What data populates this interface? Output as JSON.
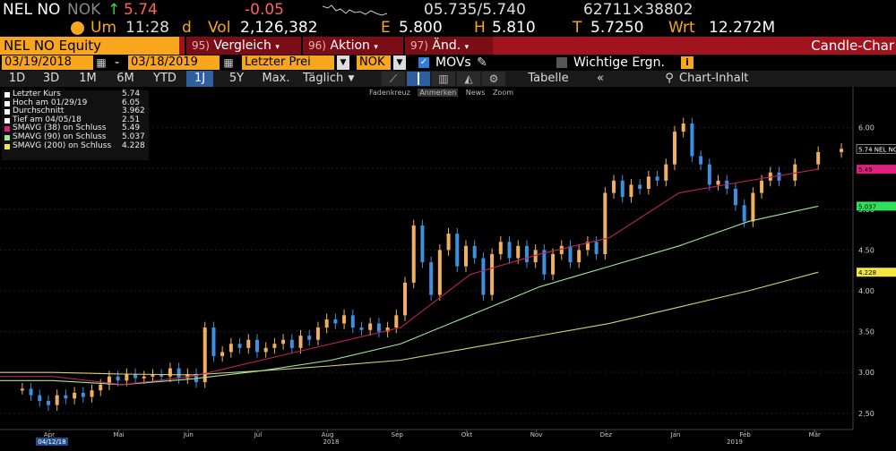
{
  "ticker": {
    "symbol": "NEL NO",
    "currency": "NOK",
    "arrow": "↑",
    "last": "5.74",
    "change": "-0.05",
    "bid_ask": "05.735/5.740",
    "size": "62711×38802",
    "um_label": "Um",
    "time": "11:28",
    "d": "d",
    "vol_label": "Vol",
    "volume": "2,126,382",
    "e_label": "E",
    "e_value": "5.800",
    "h_label": "H",
    "h_value": "5.810",
    "t_label": "T",
    "t_value": "5.7250",
    "wrt_label": "Wrt",
    "wrt_value": "12.272M"
  },
  "bar": {
    "security": "NEL NO Equity",
    "menus": [
      {
        "num": "95)",
        "label": "Vergleich"
      },
      {
        "num": "96)",
        "label": "Aktion"
      },
      {
        "num": "97)",
        "label": "Änd."
      }
    ],
    "right_label": "Candle-Char"
  },
  "range": {
    "start": "03/19/2018",
    "sep": "-",
    "end": "03/18/2019",
    "price_type": "Letzter Prei",
    "currency": "NOK",
    "movs_label": "MOVs",
    "events_label": "Wichtige Ergn."
  },
  "toolbar": {
    "periods": [
      "1D",
      "3D",
      "1M",
      "6M",
      "YTD",
      "1J",
      "5Y",
      "Max."
    ],
    "selected_period": "1J",
    "frequency": "Täglich",
    "table_label": "Tabelle",
    "content_label": "Chart-Inhalt"
  },
  "subtools": [
    "Fadenkreuz",
    "Anmerken",
    "News",
    "Zoom"
  ],
  "legend": [
    {
      "label": "Letzter Kurs",
      "value": "5.74",
      "color": "#ffffff"
    },
    {
      "label": "Hoch am 01/29/19",
      "value": "6.05",
      "color": "#ffffff"
    },
    {
      "label": "Durchschnitt",
      "value": "3.962",
      "color": "#ffffff"
    },
    {
      "label": "Tief am 04/05/18",
      "value": "2.51",
      "color": "#ffffff"
    },
    {
      "label": "SMAVG (38)  on Schluss",
      "value": "5.49",
      "color": "#e0207e"
    },
    {
      "label": "SMAVG (90)  on Schluss",
      "value": "5.037",
      "color": "#9fe89a"
    },
    {
      "label": "SMAVG (200)  on Schluss",
      "value": "4.228",
      "color": "#f3e63d"
    }
  ],
  "colors": {
    "up_candle": "#f0b060",
    "down_candle": "#3d8fe0",
    "sma38": "#c02060",
    "sma90": "#9fe89a",
    "sma200": "#d8d070",
    "orange": "#f8a71c",
    "red": "#a1131f"
  },
  "chart_data": {
    "type": "candlestick",
    "x_labels": [
      "Apr",
      "Mai",
      "Jun",
      "Jul",
      "Aug",
      "Sep",
      "Okt",
      "Nov",
      "Dez",
      "Jan",
      "Feb",
      "Mär"
    ],
    "year_labels": [
      "2018",
      "2019"
    ],
    "start_date_label": "04/12/18",
    "y_ticks": [
      "6.00",
      "5.50",
      "5.00",
      "4.50",
      "4.00",
      "3.50",
      "3.00",
      "2.50"
    ],
    "ylim": [
      2.3,
      6.5
    ],
    "price_badges": [
      {
        "value": "5.74",
        "label": "5.74 NEL NO"
      },
      {
        "value": "5.49",
        "label": "5.49"
      },
      {
        "value": "5.037",
        "label": "5.037"
      },
      {
        "value": "4.228",
        "label": "4.228"
      }
    ],
    "close_path": [
      [
        "Apr",
        2.8
      ],
      [
        "Apr",
        2.72
      ],
      [
        "Apr",
        2.65
      ],
      [
        "Apr",
        2.6
      ],
      [
        "Apr",
        2.72
      ],
      [
        "Apr",
        2.68
      ],
      [
        "Apr",
        2.75
      ],
      [
        "Apr",
        2.7
      ],
      [
        "Mai",
        2.78
      ],
      [
        "Mai",
        2.85
      ],
      [
        "Mai",
        2.95
      ],
      [
        "Mai",
        2.9
      ],
      [
        "Mai",
        2.98
      ],
      [
        "Mai",
        2.93
      ],
      [
        "Mai",
        2.95
      ],
      [
        "Mai",
        2.97
      ],
      [
        "Jun",
        2.95
      ],
      [
        "Jun",
        3.05
      ],
      [
        "Jun",
        2.93
      ],
      [
        "Jun",
        2.98
      ],
      [
        "Jun",
        2.88
      ],
      [
        "Jun",
        3.55
      ],
      [
        "Jun",
        3.2
      ],
      [
        "Jun",
        3.25
      ],
      [
        "Jul",
        3.35
      ],
      [
        "Jul",
        3.3
      ],
      [
        "Jul",
        3.4
      ],
      [
        "Jul",
        3.25
      ],
      [
        "Jul",
        3.3
      ],
      [
        "Jul",
        3.35
      ],
      [
        "Jul",
        3.4
      ],
      [
        "Jul",
        3.3
      ],
      [
        "Aug",
        3.45
      ],
      [
        "Aug",
        3.4
      ],
      [
        "Aug",
        3.55
      ],
      [
        "Aug",
        3.65
      ],
      [
        "Aug",
        3.6
      ],
      [
        "Aug",
        3.7
      ],
      [
        "Aug",
        3.55
      ],
      [
        "Aug",
        3.52
      ],
      [
        "Sep",
        3.6
      ],
      [
        "Sep",
        3.5
      ],
      [
        "Sep",
        3.55
      ],
      [
        "Sep",
        3.7
      ],
      [
        "Sep",
        4.1
      ],
      [
        "Sep",
        4.8
      ],
      [
        "Sep",
        4.35
      ],
      [
        "Sep",
        3.95
      ],
      [
        "Okt",
        4.5
      ],
      [
        "Okt",
        4.7
      ],
      [
        "Okt",
        4.3
      ],
      [
        "Okt",
        4.55
      ],
      [
        "Okt",
        4.4
      ],
      [
        "Okt",
        3.95
      ],
      [
        "Okt",
        4.45
      ],
      [
        "Okt",
        4.6
      ],
      [
        "Nov",
        4.4
      ],
      [
        "Nov",
        4.55
      ],
      [
        "Nov",
        4.35
      ],
      [
        "Nov",
        4.5
      ],
      [
        "Nov",
        4.2
      ],
      [
        "Nov",
        4.45
      ],
      [
        "Nov",
        4.55
      ],
      [
        "Nov",
        4.35
      ],
      [
        "Dez",
        4.5
      ],
      [
        "Dez",
        4.6
      ],
      [
        "Dez",
        4.45
      ],
      [
        "Dez",
        5.2
      ],
      [
        "Dez",
        5.35
      ],
      [
        "Dez",
        5.15
      ],
      [
        "Dez",
        5.3
      ],
      [
        "Dez",
        5.25
      ],
      [
        "Jan",
        5.4
      ],
      [
        "Jan",
        5.35
      ],
      [
        "Jan",
        5.55
      ],
      [
        "Jan",
        5.95
      ],
      [
        "Jan",
        6.05
      ],
      [
        "Jan",
        5.65
      ],
      [
        "Jan",
        5.55
      ],
      [
        "Jan",
        5.3
      ],
      [
        "Feb",
        5.35
      ],
      [
        "Feb",
        5.25
      ],
      [
        "Feb",
        5.05
      ],
      [
        "Feb",
        4.85
      ],
      [
        "Feb",
        5.2
      ],
      [
        "Feb",
        5.35
      ],
      [
        "Feb",
        5.45
      ],
      [
        "Feb",
        5.35
      ],
      [
        "Mär",
        5.55
      ],
      [
        "Mär",
        5.7
      ],
      [
        "Mär",
        5.74
      ]
    ],
    "sma38": [
      [
        "Apr",
        2.95
      ],
      [
        "Mai",
        2.85
      ],
      [
        "Jun",
        2.95
      ],
      [
        "Jul",
        3.15
      ],
      [
        "Aug",
        3.35
      ],
      [
        "Sep",
        3.55
      ],
      [
        "Okt",
        4.2
      ],
      [
        "Nov",
        4.45
      ],
      [
        "Dez",
        4.65
      ],
      [
        "Jan",
        5.2
      ],
      [
        "Feb",
        5.35
      ],
      [
        "Mär",
        5.49
      ]
    ],
    "sma90": [
      [
        "Apr",
        2.9
      ],
      [
        "Mai",
        2.85
      ],
      [
        "Jun",
        2.92
      ],
      [
        "Jul",
        3.02
      ],
      [
        "Aug",
        3.15
      ],
      [
        "Sep",
        3.35
      ],
      [
        "Okt",
        3.7
      ],
      [
        "Nov",
        4.05
      ],
      [
        "Dez",
        4.3
      ],
      [
        "Jan",
        4.55
      ],
      [
        "Feb",
        4.85
      ],
      [
        "Mär",
        5.037
      ]
    ],
    "sma200": [
      [
        "Apr",
        3.0
      ],
      [
        "Mai",
        2.98
      ],
      [
        "Jun",
        2.97
      ],
      [
        "Jul",
        3.02
      ],
      [
        "Aug",
        3.08
      ],
      [
        "Sep",
        3.15
      ],
      [
        "Okt",
        3.3
      ],
      [
        "Nov",
        3.45
      ],
      [
        "Dez",
        3.6
      ],
      [
        "Jan",
        3.8
      ],
      [
        "Feb",
        4.0
      ],
      [
        "Mär",
        4.228
      ]
    ]
  }
}
